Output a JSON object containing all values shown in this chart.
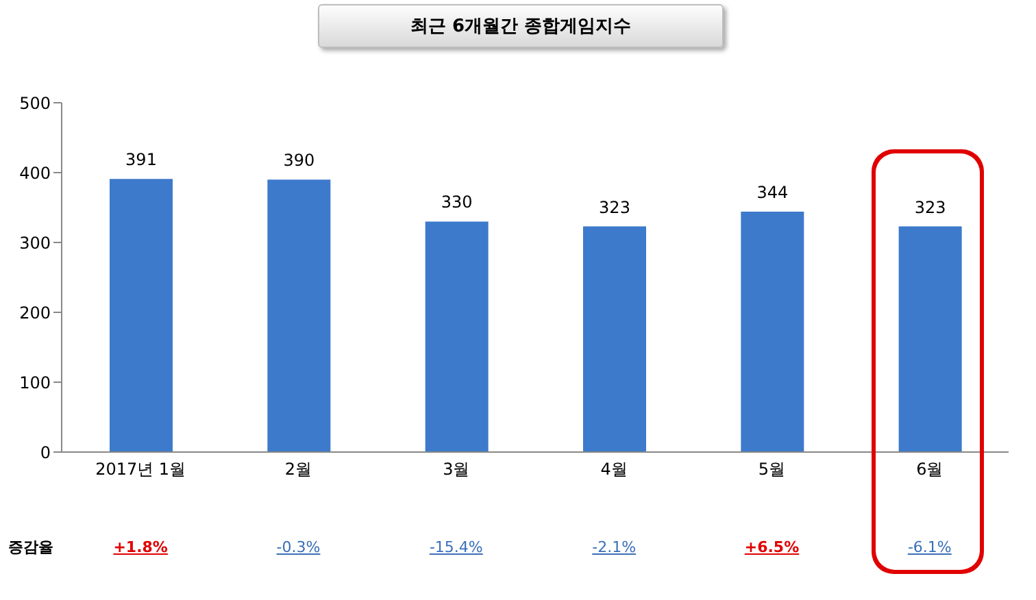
{
  "chart_data": {
    "type": "bar",
    "title": "최근 6개월간 종합게임지수",
    "categories": [
      "2017년 1월",
      "2월",
      "3월",
      "4월",
      "5월",
      "6월"
    ],
    "values": [
      391,
      390,
      330,
      323,
      344,
      323
    ],
    "color": "#3d7acb",
    "ylim": [
      0,
      500
    ],
    "yticks": [
      0,
      100,
      200,
      300,
      400,
      500
    ],
    "grid": false,
    "data_labels": true,
    "annotations": [
      "증감율",
      "+1.8%",
      "-0.3%",
      "-15.4%",
      "-2.1%",
      "+6.5%",
      "-6.1%"
    ]
  }
}
